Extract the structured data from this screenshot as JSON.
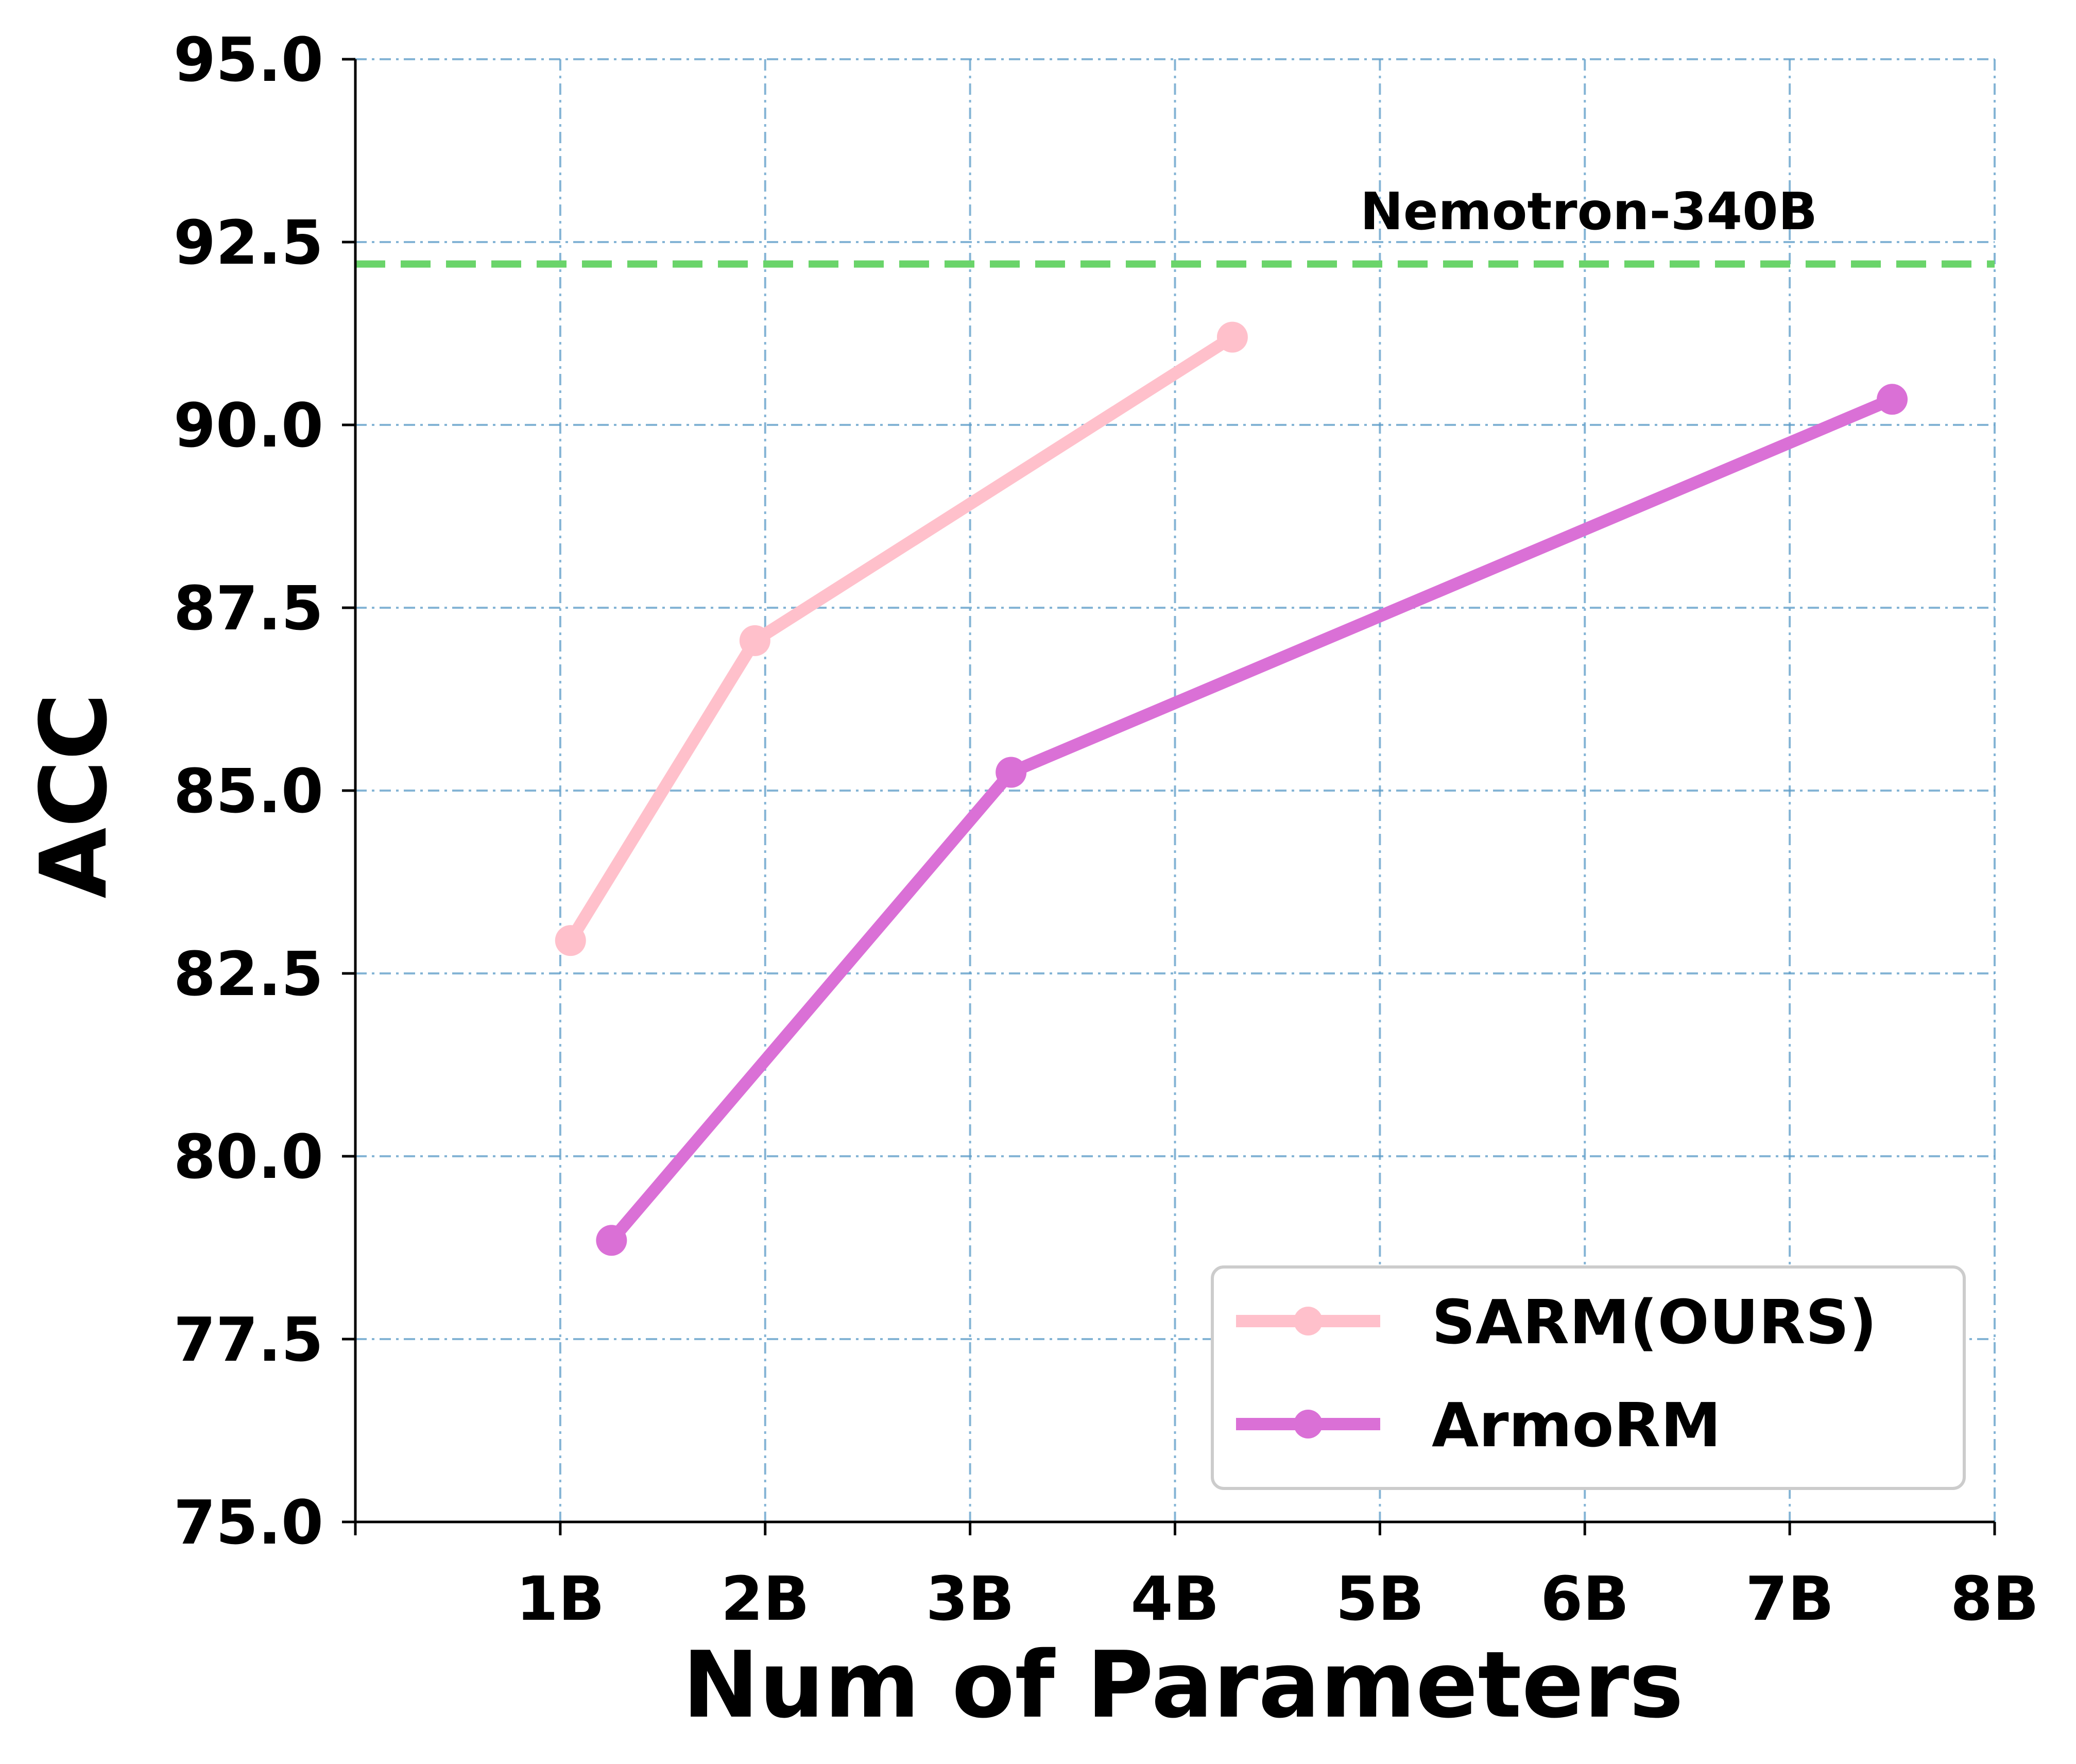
{
  "chart_data": {
    "type": "line",
    "xlabel": "Num of Parameters",
    "ylabel": "ACC",
    "xlim": [
      0,
      8
    ],
    "ylim": [
      75.0,
      95.0
    ],
    "x_ticks": [
      1,
      2,
      3,
      4,
      5,
      6,
      7,
      8
    ],
    "x_tick_labels": [
      "1B",
      "2B",
      "3B",
      "4B",
      "5B",
      "6B",
      "7B",
      "8B"
    ],
    "y_ticks": [
      75.0,
      77.5,
      80.0,
      82.5,
      85.0,
      87.5,
      90.0,
      92.5,
      95.0
    ],
    "y_tick_labels": [
      "75.0",
      "77.5",
      "80.0",
      "82.5",
      "85.0",
      "87.5",
      "90.0",
      "92.5",
      "95.0"
    ],
    "grid": true,
    "legend_position": "lower-right",
    "series": [
      {
        "name": "SARM(OURS)",
        "color": "#ffc0cb",
        "x": [
          1.05,
          1.95,
          4.28
        ],
        "y": [
          82.95,
          87.05,
          91.2
        ]
      },
      {
        "name": "ArmoRM",
        "color": "#da70d6",
        "x": [
          1.25,
          3.2,
          7.5
        ],
        "y": [
          78.85,
          85.25,
          90.35
        ]
      }
    ],
    "reference_line": {
      "label": "Nemotron-340B",
      "y": 92.2,
      "color": "#6ad46a"
    }
  }
}
